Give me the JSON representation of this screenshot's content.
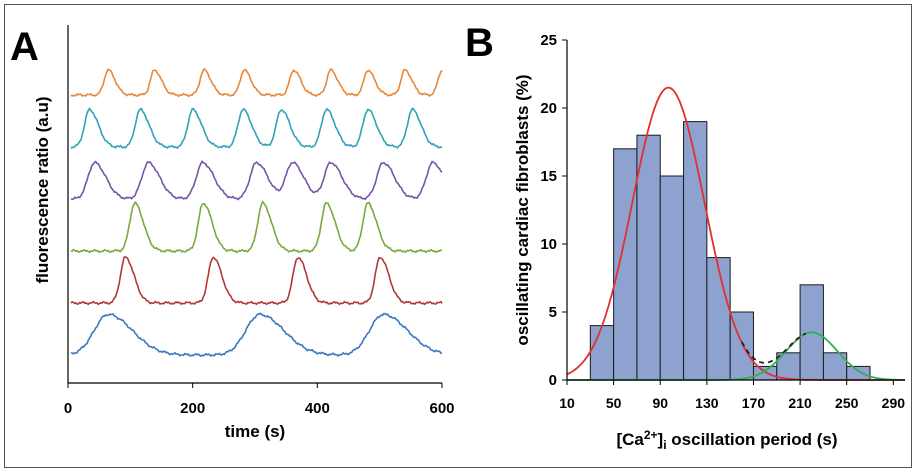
{
  "panels": {
    "a": {
      "label": "A"
    },
    "b": {
      "label": "B"
    }
  },
  "chart_data": [
    {
      "type": "line",
      "panel": "A",
      "ylabel": "fluorescence ratio (a.u)",
      "xlabel": "time (s)",
      "xlim": [
        0,
        600
      ],
      "xticks": [
        "0",
        "200",
        "400",
        "600"
      ],
      "series": [
        {
          "color": "#e8883a",
          "peaks": [
            60,
            135,
            215,
            280,
            360,
            420,
            480,
            540,
            600
          ],
          "amp": 0.48,
          "width": 8
        },
        {
          "color": "#2fa3b8",
          "peaks": [
            30,
            112,
            197,
            278,
            340,
            413,
            480,
            552
          ],
          "amp": 0.72,
          "width": 10
        },
        {
          "color": "#7656a8",
          "peaks": [
            38,
            125,
            213,
            300,
            358,
            420,
            505,
            585
          ],
          "amp": 0.7,
          "width": 13
        },
        {
          "color": "#78aa3e",
          "peaks": [
            103,
            214,
            310,
            413,
            480
          ],
          "amp": 0.92,
          "width": 10
        },
        {
          "color": "#b03838",
          "peaks": [
            88,
            230,
            367,
            500
          ],
          "amp": 0.88,
          "width": 10
        },
        {
          "color": "#3a78c0",
          "peaks": [
            60,
            305,
            505
          ],
          "amp": 0.78,
          "width": 28
        }
      ]
    },
    {
      "type": "bar",
      "panel": "B",
      "ylabel": "oscillating cardiac fibroblasts (%)",
      "xlabel": "[Ca²⁺]ᵢ oscillation period (s)",
      "xlim": [
        10,
        300
      ],
      "ylim": [
        0,
        25
      ],
      "yticks": [
        "0",
        "5",
        "10",
        "15",
        "20",
        "25"
      ],
      "xticks": [
        "10",
        "50",
        "90",
        "130",
        "170",
        "210",
        "250",
        "290"
      ],
      "bin_width": 20,
      "bins": [
        {
          "x": 40,
          "value": 4
        },
        {
          "x": 60,
          "value": 17
        },
        {
          "x": 80,
          "value": 18
        },
        {
          "x": 100,
          "value": 15
        },
        {
          "x": 120,
          "value": 19
        },
        {
          "x": 140,
          "value": 9
        },
        {
          "x": 160,
          "value": 5
        },
        {
          "x": 180,
          "value": 1
        },
        {
          "x": 200,
          "value": 2
        },
        {
          "x": 220,
          "value": 7
        },
        {
          "x": 240,
          "value": 2
        },
        {
          "x": 260,
          "value": 1
        }
      ],
      "bar_color": "#8ea2d0",
      "fits": [
        {
          "color": "#e03030",
          "mean": 97,
          "sd": 31,
          "peak": 21.5
        },
        {
          "color": "#30b050",
          "mean": 220,
          "sd": 22,
          "peak": 3.5
        },
        {
          "color": "#222222",
          "style": "dashed",
          "sum_of": [
            0,
            1
          ]
        }
      ]
    }
  ]
}
